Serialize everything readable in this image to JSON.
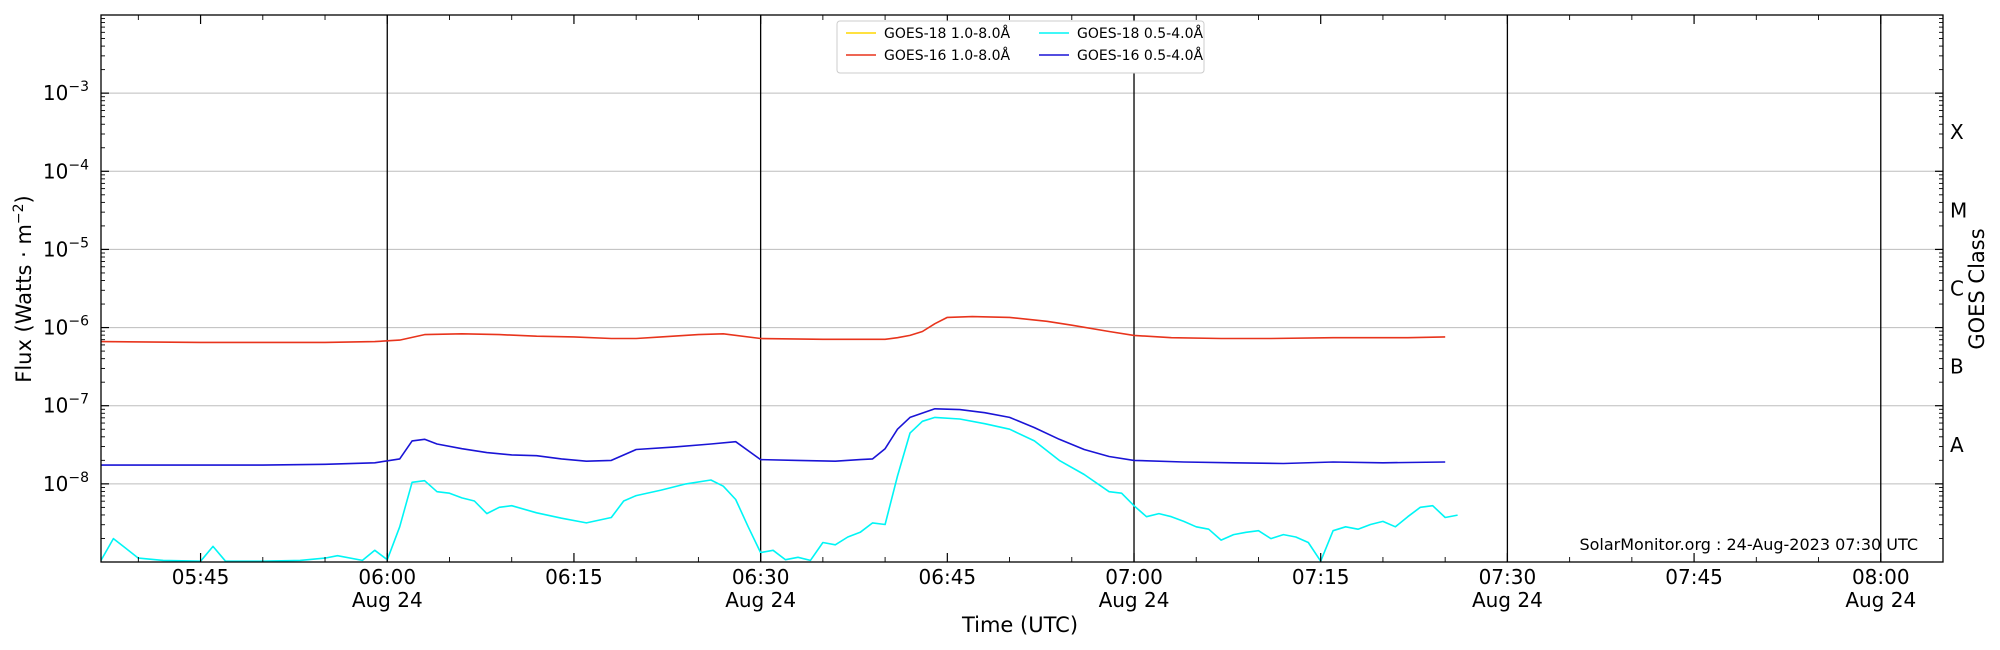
{
  "chart_data": {
    "type": "line",
    "xlabel": "Time (UTC)",
    "ylabel": "Flux (Watts · m^-2)",
    "ylabel_parts": {
      "base": "Flux (Watts · m",
      "exp": "−2",
      "close": ")"
    },
    "right_label": "GOES Class",
    "credit": "SolarMonitor.org : 24-Aug-2023 07:30 UTC",
    "xlim_minutes_after_0500": [
      37,
      185
    ],
    "ylim_log10": [
      -9,
      -2
    ],
    "y_ticks": [
      {
        "exp": -8,
        "label_base": "10",
        "label_exp": "−8"
      },
      {
        "exp": -7,
        "label_base": "10",
        "label_exp": "−7"
      },
      {
        "exp": -6,
        "label_base": "10",
        "label_exp": "−6"
      },
      {
        "exp": -5,
        "label_base": "10",
        "label_exp": "−5"
      },
      {
        "exp": -4,
        "label_base": "10",
        "label_exp": "−4"
      },
      {
        "exp": -3,
        "label_base": "10",
        "label_exp": "−3"
      }
    ],
    "goes_classes": [
      {
        "label": "A",
        "exp": -8
      },
      {
        "label": "B",
        "exp": -7
      },
      {
        "label": "C",
        "exp": -6
      },
      {
        "label": "M",
        "exp": -5
      },
      {
        "label": "X",
        "exp": -4
      }
    ],
    "x_ticks": [
      {
        "t": 45,
        "label": "05:45",
        "sub": ""
      },
      {
        "t": 60,
        "label": "06:00",
        "sub": "Aug 24"
      },
      {
        "t": 75,
        "label": "06:15",
        "sub": ""
      },
      {
        "t": 90,
        "label": "06:30",
        "sub": "Aug 24"
      },
      {
        "t": 105,
        "label": "06:45",
        "sub": ""
      },
      {
        "t": 120,
        "label": "07:00",
        "sub": "Aug 24"
      },
      {
        "t": 135,
        "label": "07:15",
        "sub": ""
      },
      {
        "t": 150,
        "label": "07:30",
        "sub": "Aug 24"
      },
      {
        "t": 165,
        "label": "07:45",
        "sub": ""
      },
      {
        "t": 180,
        "label": "08:00",
        "sub": "Aug 24"
      }
    ],
    "vlines_t": [
      60,
      90,
      120,
      150,
      180
    ],
    "legend": [
      {
        "name": "GOES-18 1.0-8.0Å",
        "color": "#ffd700"
      },
      {
        "name": "GOES-18 0.5-4.0Å",
        "color": "#00f5f5"
      },
      {
        "name": "GOES-16 1.0-8.0Å",
        "color": "#e8341c"
      },
      {
        "name": "GOES-16 0.5-4.0Å",
        "color": "#1a14d6"
      }
    ],
    "series": [
      {
        "name": "GOES-16 1.0-8.0Å",
        "color": "#e8341c",
        "points": [
          [
            37,
            -6.18
          ],
          [
            45,
            -6.19
          ],
          [
            50,
            -6.19
          ],
          [
            55,
            -6.19
          ],
          [
            59,
            -6.18
          ],
          [
            61,
            -6.16
          ],
          [
            63,
            -6.09
          ],
          [
            66,
            -6.08
          ],
          [
            69,
            -6.09
          ],
          [
            72,
            -6.11
          ],
          [
            75,
            -6.12
          ],
          [
            78,
            -6.14
          ],
          [
            80,
            -6.14
          ],
          [
            82,
            -6.12
          ],
          [
            85,
            -6.09
          ],
          [
            87,
            -6.08
          ],
          [
            90,
            -6.14
          ],
          [
            95,
            -6.15
          ],
          [
            100,
            -6.15
          ],
          [
            101,
            -6.13
          ],
          [
            102,
            -6.1
          ],
          [
            103,
            -6.05
          ],
          [
            104,
            -5.95
          ],
          [
            105,
            -5.87
          ],
          [
            107,
            -5.86
          ],
          [
            110,
            -5.87
          ],
          [
            113,
            -5.92
          ],
          [
            115,
            -5.97
          ],
          [
            118,
            -6.05
          ],
          [
            120,
            -6.1
          ],
          [
            123,
            -6.13
          ],
          [
            127,
            -6.14
          ],
          [
            131,
            -6.14
          ],
          [
            136,
            -6.13
          ],
          [
            139,
            -6.13
          ],
          [
            142,
            -6.13
          ],
          [
            145,
            -6.12
          ]
        ]
      },
      {
        "name": "GOES-16 0.5-4.0Å",
        "color": "#1a14d6",
        "points": [
          [
            37,
            -7.76
          ],
          [
            40,
            -7.76
          ],
          [
            45,
            -7.76
          ],
          [
            50,
            -7.76
          ],
          [
            55,
            -7.75
          ],
          [
            59,
            -7.73
          ],
          [
            61,
            -7.68
          ],
          [
            62,
            -7.45
          ],
          [
            63,
            -7.43
          ],
          [
            64,
            -7.49
          ],
          [
            66,
            -7.55
          ],
          [
            68,
            -7.6
          ],
          [
            70,
            -7.63
          ],
          [
            72,
            -7.64
          ],
          [
            74,
            -7.68
          ],
          [
            76,
            -7.71
          ],
          [
            78,
            -7.7
          ],
          [
            80,
            -7.56
          ],
          [
            83,
            -7.53
          ],
          [
            86,
            -7.49
          ],
          [
            88,
            -7.46
          ],
          [
            90,
            -7.69
          ],
          [
            93,
            -7.7
          ],
          [
            96,
            -7.71
          ],
          [
            98,
            -7.69
          ],
          [
            99,
            -7.68
          ],
          [
            100,
            -7.55
          ],
          [
            101,
            -7.3
          ],
          [
            102,
            -7.15
          ],
          [
            104,
            -7.04
          ],
          [
            106,
            -7.05
          ],
          [
            108,
            -7.09
          ],
          [
            110,
            -7.15
          ],
          [
            112,
            -7.28
          ],
          [
            114,
            -7.43
          ],
          [
            116,
            -7.56
          ],
          [
            118,
            -7.65
          ],
          [
            120,
            -7.7
          ],
          [
            124,
            -7.72
          ],
          [
            128,
            -7.73
          ],
          [
            132,
            -7.74
          ],
          [
            136,
            -7.72
          ],
          [
            140,
            -7.73
          ],
          [
            145,
            -7.72
          ]
        ]
      },
      {
        "name": "GOES-18 0.5-4.0Å",
        "color": "#00f5f5",
        "points": [
          [
            37,
            -8.98
          ],
          [
            38,
            -8.7
          ],
          [
            40,
            -8.95
          ],
          [
            42,
            -8.98
          ],
          [
            45,
            -8.99
          ],
          [
            46,
            -8.8
          ],
          [
            47,
            -8.99
          ],
          [
            50,
            -8.99
          ],
          [
            53,
            -8.98
          ],
          [
            55,
            -8.95
          ],
          [
            56,
            -8.92
          ],
          [
            58,
            -8.98
          ],
          [
            59,
            -8.85
          ],
          [
            60,
            -8.97
          ],
          [
            61,
            -8.55
          ],
          [
            62,
            -7.98
          ],
          [
            63,
            -7.96
          ],
          [
            64,
            -8.1
          ],
          [
            65,
            -8.12
          ],
          [
            66,
            -8.18
          ],
          [
            67,
            -8.22
          ],
          [
            68,
            -8.38
          ],
          [
            69,
            -8.3
          ],
          [
            70,
            -8.28
          ],
          [
            72,
            -8.37
          ],
          [
            74,
            -8.44
          ],
          [
            76,
            -8.5
          ],
          [
            78,
            -8.43
          ],
          [
            79,
            -8.22
          ],
          [
            80,
            -8.15
          ],
          [
            82,
            -8.08
          ],
          [
            84,
            -8.0
          ],
          [
            86,
            -7.95
          ],
          [
            87,
            -8.03
          ],
          [
            88,
            -8.2
          ],
          [
            89,
            -8.55
          ],
          [
            90,
            -8.88
          ],
          [
            91,
            -8.85
          ],
          [
            92,
            -8.97
          ],
          [
            93,
            -8.94
          ],
          [
            94,
            -8.98
          ],
          [
            95,
            -8.75
          ],
          [
            96,
            -8.78
          ],
          [
            97,
            -8.68
          ],
          [
            98,
            -8.62
          ],
          [
            99,
            -8.5
          ],
          [
            100,
            -8.52
          ],
          [
            101,
            -7.9
          ],
          [
            102,
            -7.35
          ],
          [
            103,
            -7.2
          ],
          [
            104,
            -7.15
          ],
          [
            106,
            -7.17
          ],
          [
            108,
            -7.23
          ],
          [
            110,
            -7.3
          ],
          [
            112,
            -7.45
          ],
          [
            114,
            -7.7
          ],
          [
            116,
            -7.88
          ],
          [
            118,
            -8.1
          ],
          [
            119,
            -8.12
          ],
          [
            120,
            -8.28
          ],
          [
            121,
            -8.42
          ],
          [
            122,
            -8.38
          ],
          [
            123,
            -8.42
          ],
          [
            124,
            -8.48
          ],
          [
            125,
            -8.55
          ],
          [
            126,
            -8.58
          ],
          [
            127,
            -8.72
          ],
          [
            128,
            -8.65
          ],
          [
            129,
            -8.62
          ],
          [
            130,
            -8.6
          ],
          [
            131,
            -8.7
          ],
          [
            132,
            -8.65
          ],
          [
            133,
            -8.68
          ],
          [
            134,
            -8.75
          ],
          [
            135,
            -8.99
          ],
          [
            136,
            -8.6
          ],
          [
            137,
            -8.55
          ],
          [
            138,
            -8.58
          ],
          [
            139,
            -8.52
          ],
          [
            140,
            -8.48
          ],
          [
            141,
            -8.55
          ],
          [
            142,
            -8.42
          ],
          [
            143,
            -8.3
          ],
          [
            144,
            -8.28
          ],
          [
            145,
            -8.43
          ],
          [
            146,
            -8.4
          ]
        ]
      }
    ]
  }
}
